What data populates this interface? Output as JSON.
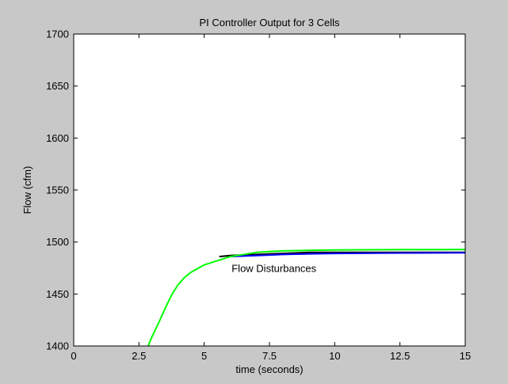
{
  "chart_data": {
    "type": "line",
    "title": "PI Controller Output for 3 Cells",
    "xlabel": "time (seconds)",
    "ylabel": "Flow (cfm)",
    "xlim": [
      0,
      15
    ],
    "ylim": [
      1400,
      1700
    ],
    "xticks": [
      0,
      2.5,
      5,
      7.5,
      10,
      12.5,
      15
    ],
    "xtick_labels": [
      "0",
      "2.5",
      "5",
      "7.5",
      "10",
      "12.5",
      "15"
    ],
    "yticks": [
      1400,
      1450,
      1500,
      1550,
      1600,
      1650,
      1700
    ],
    "ytick_labels": [
      "1400",
      "1450",
      "1500",
      "1550",
      "1600",
      "1650",
      "1700"
    ],
    "grid": false,
    "background_color": "#c8c8c8",
    "plot_area_color": "#ffffff",
    "annotations": [
      {
        "text": "Flow Disturbances",
        "x": 6.05,
        "y": 1475
      }
    ],
    "series": [
      {
        "color": "#000000",
        "x": [
          5.6,
          6.0,
          7.0,
          8.0,
          9.0,
          10.0,
          11.0,
          12.0,
          13.0,
          14.0,
          15.0
        ],
        "y": [
          1486,
          1487,
          1488,
          1489,
          1490,
          1490,
          1490,
          1490,
          1490,
          1490,
          1490
        ]
      },
      {
        "color": "#0000ff",
        "x": [
          6.0,
          6.5,
          7.0,
          7.5,
          8.0,
          8.5,
          9.0,
          10.0,
          11.0,
          12.0,
          13.0,
          14.0,
          15.0
        ],
        "y": [
          1486,
          1486.5,
          1487,
          1487.5,
          1488,
          1488.3,
          1488.6,
          1489,
          1489.2,
          1489.4,
          1489.5,
          1489.6,
          1489.7
        ]
      },
      {
        "color": "#00ff00",
        "x": [
          2.85,
          3.0,
          3.25,
          3.5,
          3.75,
          4.0,
          4.25,
          4.5,
          5.0,
          5.5,
          6.0,
          6.5,
          7.0,
          7.5,
          8.0,
          9.0,
          10.0,
          11.0,
          12.0,
          13.0,
          14.0,
          15.0
        ],
        "y": [
          1400,
          1409,
          1422,
          1436,
          1449,
          1459,
          1466,
          1471,
          1478,
          1482,
          1486,
          1488,
          1490,
          1490.8,
          1491.5,
          1492,
          1492.3,
          1492.5,
          1492.6,
          1492.7,
          1492.7,
          1492.8
        ]
      }
    ]
  }
}
